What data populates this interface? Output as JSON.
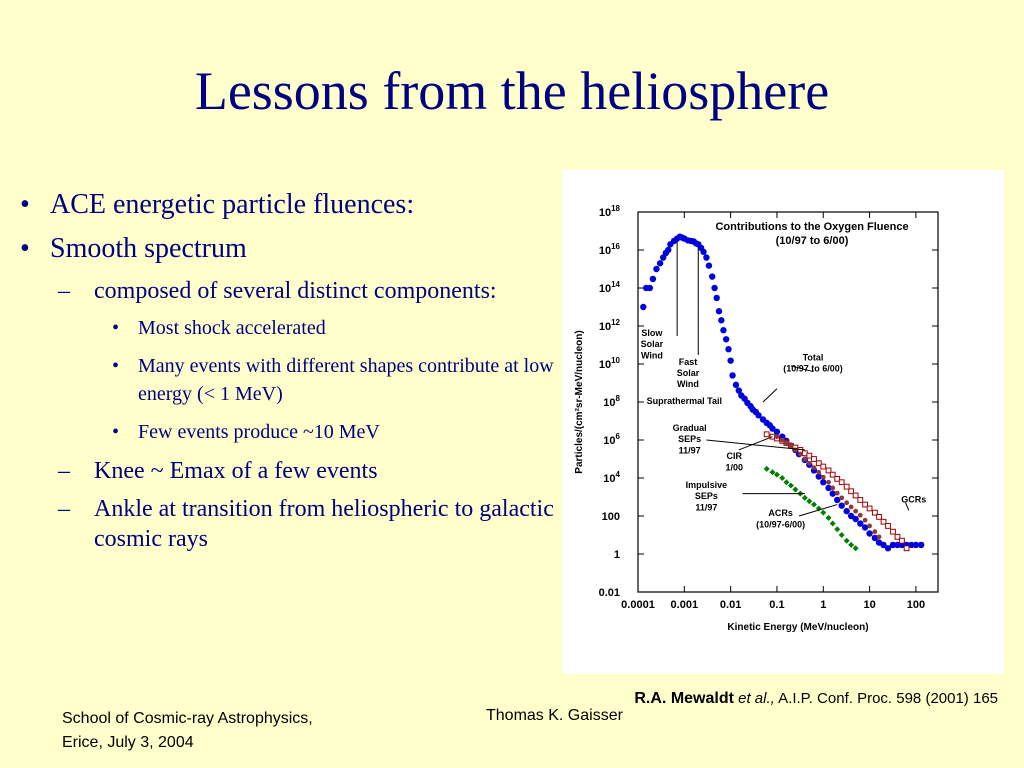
{
  "slide": {
    "title": "Lessons from the heliosphere",
    "bullets": {
      "b1": "ACE energetic particle fluences:",
      "b2": "Smooth spectrum",
      "s1": "composed of several distinct components:",
      "t1": "Most shock accelerated",
      "t2": "Many events with different shapes contribute at low energy (< 1 MeV)",
      "t3": "Few events produce ~10 MeV",
      "s2": "Knee ~ Emax of a few events",
      "s3": "Ankle at transition from heliospheric to galactic cosmic rays"
    },
    "citation": {
      "author": "R.A. Mewaldt",
      "etal": "et al.,",
      "ref": "A.I.P. Conf. Proc. 598 (2001) 165"
    },
    "footer": {
      "left_line1": "School of Cosmic-ray Astrophysics,",
      "left_line2": "Erice, July 3, 2004",
      "center": "Thomas K. Gaisser"
    }
  },
  "chart_data": {
    "type": "scatter",
    "title": "Contributions to the Oxygen Fluence",
    "subtitle": "(10/97 to 6/00)",
    "xlabel": "Kinetic Energy (MeV/nucleon)",
    "ylabel": "Particles/(cm²sr-MeV/nucleon)",
    "xscale": "log",
    "yscale": "log",
    "xlim": [
      0.0001,
      300
    ],
    "ylim": [
      0.01,
      1e+18
    ],
    "x_ticks": [
      {
        "v": 0.0001,
        "label": "0.0001"
      },
      {
        "v": 0.001,
        "label": "0.001"
      },
      {
        "v": 0.01,
        "label": "0.01"
      },
      {
        "v": 0.1,
        "label": "0.1"
      },
      {
        "v": 1,
        "label": "1"
      },
      {
        "v": 10,
        "label": "10"
      },
      {
        "v": 100,
        "label": "100"
      }
    ],
    "y_ticks": [
      {
        "v": 1e+18,
        "base": "10",
        "exp": "18"
      },
      {
        "v": 1e+16,
        "base": "10",
        "exp": "16"
      },
      {
        "v": 100000000000000.0,
        "base": "10",
        "exp": "14"
      },
      {
        "v": 1000000000000.0,
        "base": "10",
        "exp": "12"
      },
      {
        "v": 10000000000.0,
        "base": "10",
        "exp": "10"
      },
      {
        "v": 100000000.0,
        "base": "10",
        "exp": "8"
      },
      {
        "v": 1000000.0,
        "base": "10",
        "exp": "6"
      },
      {
        "v": 10000.0,
        "base": "10",
        "exp": "4"
      },
      {
        "v": 100,
        "base": "100",
        "exp": ""
      },
      {
        "v": 1,
        "base": "1",
        "exp": ""
      },
      {
        "v": 0.01,
        "base": "0.01",
        "exp": ""
      }
    ],
    "series": [
      {
        "color": "#0000dd",
        "marker": "circle",
        "x": [
          0.00013,
          0.00015,
          0.00018,
          0.00021,
          0.00025,
          0.0003,
          0.00035,
          0.0004,
          0.00045,
          0.0005,
          0.0006,
          0.0007,
          0.0008,
          0.0009,
          0.001,
          0.0012,
          0.0014,
          0.0016,
          0.0018,
          0.002,
          0.0023,
          0.0026,
          0.003,
          0.0034,
          0.004,
          0.0045,
          0.005,
          0.0056,
          0.0063,
          0.007,
          0.008,
          0.009,
          0.01,
          0.011,
          0.013,
          0.015,
          0.017,
          0.02,
          0.023,
          0.027,
          0.03,
          0.035,
          0.04,
          0.05,
          0.06,
          0.07,
          0.08,
          0.1,
          0.13,
          0.16,
          0.2,
          0.25,
          0.3,
          0.4,
          0.5,
          0.63,
          0.8,
          1,
          1.3,
          1.6,
          2,
          2.5,
          3.2,
          4,
          5,
          6.3,
          8,
          10,
          13,
          16,
          20,
          25,
          32,
          40,
          50,
          63,
          80,
          100,
          130
        ],
        "y": [
          10000000000000.0,
          100000000000000.0,
          100000000000000.0,
          300000000000000.0,
          1000000000000000.0,
          2000000000000000.0,
          4000000000000000.0,
          7000000000000000.0,
          1e+16,
          2e+16,
          3e+16,
          4e+16,
          5e+16,
          4.5e+16,
          4e+16,
          3.2e+16,
          3e+16,
          2.8e+16,
          2.2e+16,
          2e+16,
          1.3e+16,
          8000000000000000.0,
          4000000000000000.0,
          1500000000000000.0,
          400000000000000.0,
          100000000000000.0,
          30000000000000.0,
          6000000000000.0,
          2000000000000.0,
          600000000000.0,
          200000000000.0,
          60000000000.0,
          15000000000.0,
          2500000000.0,
          800000000.0,
          400000000.0,
          220000000.0,
          150000000.0,
          90000000.0,
          60000000.0,
          40000000.0,
          30000000.0,
          20000000.0,
          12000000.0,
          8000000.0,
          6000000.0,
          4000000.0,
          2700000.0,
          1500000.0,
          900000.0,
          500000.0,
          300000.0,
          180000.0,
          90000.0,
          50000.0,
          25000.0,
          12000.0,
          6000.0,
          3000.0,
          1500.0,
          700,
          350,
          180,
          100,
          70,
          40,
          25,
          12,
          7,
          4,
          3,
          2,
          3,
          3,
          3,
          3,
          3,
          3,
          3
        ]
      },
      {
        "color": "#a00000",
        "marker": "square-open",
        "x": [
          0.06,
          0.08,
          0.1,
          0.13,
          0.16,
          0.2,
          0.25,
          0.32,
          0.4,
          0.5,
          0.63,
          0.8,
          1,
          1.3,
          1.6,
          2,
          2.5,
          3.2,
          4,
          5,
          6.3,
          8,
          10,
          13,
          16,
          20,
          25,
          32,
          40,
          50,
          63
        ],
        "y": [
          2000000.0,
          1500000.0,
          1200000.0,
          900000.0,
          700000.0,
          500000.0,
          400000.0,
          300000.0,
          200000.0,
          150000.0,
          100000.0,
          60000.0,
          40000.0,
          25000.0,
          15000.0,
          9000.0,
          6000.0,
          3500.0,
          2000.0,
          1200.0,
          700,
          400,
          250,
          150,
          90,
          50,
          30,
          15,
          8,
          5,
          2
        ]
      },
      {
        "color": "#8b3a3a",
        "marker": "circle",
        "x": [
          0.1,
          0.13,
          0.16,
          0.2,
          0.25,
          0.32,
          0.4,
          0.5,
          0.63,
          0.8,
          1,
          1.3,
          1.6,
          2,
          2.5,
          3.2,
          4,
          5,
          6.3,
          8,
          10,
          13,
          16
        ],
        "y": [
          1500000.0,
          1000000.0,
          700000.0,
          500000.0,
          300000.0,
          180000.0,
          100000.0,
          60000.0,
          35000.0,
          20000.0,
          11000.0,
          6000.0,
          3000.0,
          1600.0,
          900,
          500,
          300,
          180,
          110,
          60,
          30,
          15,
          8
        ]
      },
      {
        "color": "#008000",
        "marker": "diamond",
        "x": [
          0.06,
          0.08,
          0.1,
          0.13,
          0.16,
          0.2,
          0.25,
          0.32,
          0.4,
          0.5,
          0.63,
          0.8,
          1,
          1.3,
          1.6,
          2,
          2.5,
          3.2,
          4,
          5
        ],
        "y": [
          30000.0,
          20000.0,
          15000.0,
          10000.0,
          6000.0,
          4000.0,
          2500.0,
          1500.0,
          900,
          600,
          400,
          250,
          150,
          80,
          40,
          20,
          10,
          5,
          3,
          2
        ]
      }
    ],
    "labels": [
      {
        "text": "Slow",
        "lx": 0.0002,
        "ly": 300000000000.0
      },
      {
        "text": "Solar",
        "lx": 0.0002,
        "ly": 80000000000.0
      },
      {
        "text": "Wind",
        "lx": 0.0002,
        "ly": 20000000000.0
      },
      {
        "text": "Fast",
        "lx": 0.0012,
        "ly": 9000000000.0
      },
      {
        "text": "Solar",
        "lx": 0.0012,
        "ly": 2400000000.0
      },
      {
        "text": "Wind",
        "lx": 0.0012,
        "ly": 600000000.0
      },
      {
        "text": "Total",
        "lx": 0.6,
        "ly": 15000000000.0
      },
      {
        "text": "(10/97 to 6/00)",
        "lx": 0.6,
        "ly": 4000000000.0
      },
      {
        "text": "Suprathermal Tail",
        "lx": 0.001,
        "ly": 80000000.0
      },
      {
        "text": "Gradual",
        "lx": 0.0013,
        "ly": 3000000.0
      },
      {
        "text": "SEPs",
        "lx": 0.0013,
        "ly": 800000.0
      },
      {
        "text": "11/97",
        "lx": 0.0013,
        "ly": 200000.0
      },
      {
        "text": "CIR",
        "lx": 0.012,
        "ly": 100000.0
      },
      {
        "text": "1/00",
        "lx": 0.012,
        "ly": 25000.0
      },
      {
        "text": "Impulsive",
        "lx": 0.003,
        "ly": 3000.0
      },
      {
        "text": "SEPs",
        "lx": 0.003,
        "ly": 800
      },
      {
        "text": "11/97",
        "lx": 0.003,
        "ly": 200
      },
      {
        "text": "ACRs",
        "lx": 0.12,
        "ly": 100
      },
      {
        "text": "(10/97-6/00)",
        "lx": 0.12,
        "ly": 25
      },
      {
        "text": "GCRs",
        "lx": 90,
        "ly": 500
      }
    ]
  }
}
